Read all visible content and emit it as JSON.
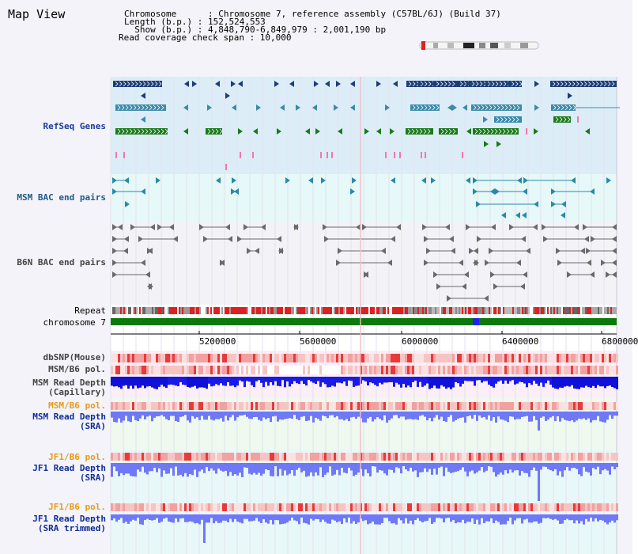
{
  "page": {
    "title": "Map View",
    "chromosome_line": "Chromosome      : Chromosome 7, reference assembly (C57BL/6J) (Build 37)",
    "length_line": "Length (b.p.) : 152,524,553",
    "show_line": "  Show (b.p.) : 4,848,790-6,849,979 : 2,001,190 bp",
    "coverage_line": "Read coverage check span : 10,000"
  },
  "tracks": {
    "refseq": "RefSeq Genes",
    "msm_bac": "MSM BAC end pairs",
    "b6n_bac": "B6N BAC end pairs",
    "repeat": "Repeat",
    "chromosome": "chromosome 7",
    "dbsnp": "dbSNP(Mouse)",
    "msm_pol": "MSM/B6 pol.",
    "msm_depth_cap_1": "MSM Read Depth",
    "msm_depth_cap_2": "(Capillary)",
    "msm_pol2": "MSM/B6 pol.",
    "msm_depth_sra_1": "MSM Read Depth",
    "msm_depth_sra_2": "(SRA)",
    "jf1_pol": "JF1/B6 pol.",
    "jf1_depth_1": "JF1 Read Depth",
    "jf1_depth_2": "(SRA)",
    "jf1_pol2": "JF1/B6 pol.",
    "jf1_trim_1": "JF1 Read Depth",
    "jf1_trim_2": "(SRA trimmed)"
  },
  "axis": {
    "ticks": [
      "5200000",
      "5600000",
      "6000000",
      "6400000",
      "6800000"
    ]
  },
  "colors": {
    "refseq_bg": "#dcedf8",
    "bac_bg": "#e6f8f8",
    "gene_navy": "#1d3d78",
    "gene_teal": "#3d8aa8",
    "gene_green": "#1a7a1a",
    "chrom_green": "#0b7a0b",
    "depth_blue": "#6f78f6"
  }
}
